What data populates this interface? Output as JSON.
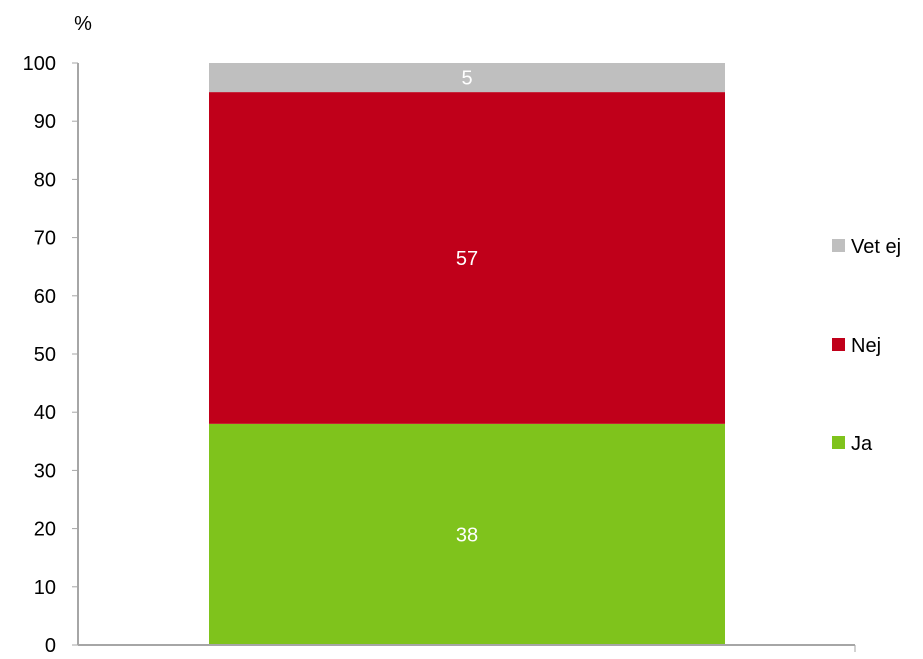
{
  "chart_data": {
    "type": "bar",
    "stacked": true,
    "ylabel": "%",
    "ylim": [
      0,
      100
    ],
    "yticks": [
      0,
      10,
      20,
      30,
      40,
      50,
      60,
      70,
      80,
      90,
      100
    ],
    "categories": [
      ""
    ],
    "grid": false,
    "legend_position": "right",
    "series": [
      {
        "name": "Ja",
        "values": [
          38
        ],
        "color": "#7fc31c"
      },
      {
        "name": "Nej",
        "values": [
          57
        ],
        "color": "#c0001a"
      },
      {
        "name": "Vet ej",
        "values": [
          5
        ],
        "color": "#bfbfbf"
      }
    ],
    "axis_color": "#a6a6a6",
    "label_color": "#ffffff"
  }
}
